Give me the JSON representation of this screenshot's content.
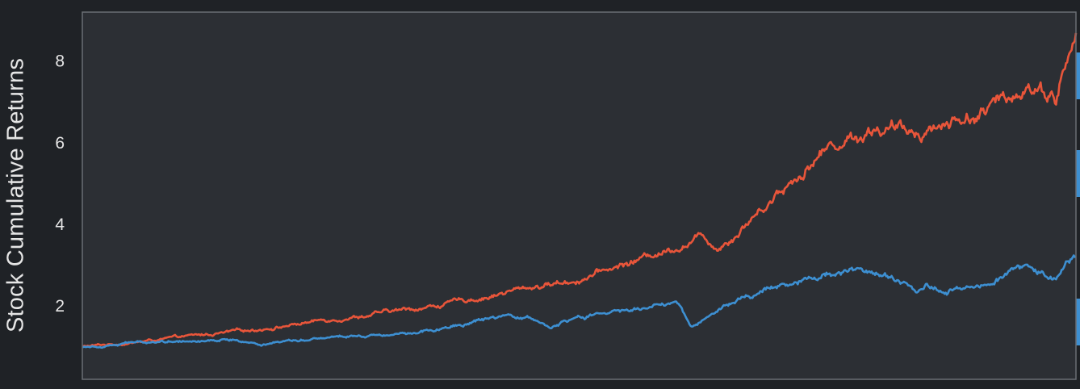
{
  "colors": {
    "background": "#1f2226",
    "plot_background": "#2c2f34",
    "frame": "#6a6e74",
    "text": "#e6e6e6",
    "series_orange": "#e8553a",
    "series_blue": "#3d8fd1"
  },
  "chart_data": {
    "type": "line",
    "title": "",
    "xlabel": "",
    "ylabel": "Stock Cumulative Returns",
    "xlim": [
      0,
      1
    ],
    "ylim": [
      0.2,
      9.2
    ],
    "yticks": [
      2,
      4,
      6,
      8
    ],
    "ytick_labels": [
      "2",
      "4",
      "6",
      "8"
    ],
    "xtick_labels": [],
    "grid": false,
    "legend": "none",
    "series": [
      {
        "color": "#e8553a",
        "x": [
          0.0,
          0.05,
          0.1,
          0.15,
          0.2,
          0.25,
          0.3,
          0.35,
          0.4,
          0.45,
          0.5,
          0.55,
          0.6,
          0.625,
          0.64,
          0.66,
          0.7,
          0.72,
          0.75,
          0.78,
          0.8,
          0.83,
          0.87,
          0.91,
          0.93,
          0.95,
          0.97,
          0.98,
          0.985,
          1.0
        ],
        "y": [
          1.0,
          1.1,
          1.23,
          1.35,
          1.5,
          1.68,
          1.82,
          1.98,
          2.2,
          2.45,
          2.65,
          3.05,
          3.48,
          3.72,
          3.45,
          3.85,
          4.8,
          5.2,
          5.9,
          6.2,
          6.4,
          6.25,
          6.5,
          6.8,
          7.0,
          7.5,
          7.3,
          7.15,
          7.6,
          8.55
        ]
      },
      {
        "color": "#3d8fd1",
        "x": [
          0.0,
          0.05,
          0.1,
          0.15,
          0.18,
          0.2,
          0.25,
          0.3,
          0.35,
          0.38,
          0.4,
          0.45,
          0.47,
          0.5,
          0.55,
          0.6,
          0.6125,
          0.62,
          0.63,
          0.66,
          0.7,
          0.73,
          0.77,
          0.8,
          0.82,
          0.84,
          0.85,
          0.87,
          0.9,
          0.93,
          0.95,
          0.97,
          0.98,
          1.0
        ],
        "y": [
          1.0,
          1.1,
          1.15,
          1.18,
          1.05,
          1.15,
          1.25,
          1.3,
          1.42,
          1.5,
          1.65,
          1.7,
          1.48,
          1.7,
          1.9,
          2.05,
          1.5,
          1.6,
          1.8,
          2.15,
          2.5,
          2.7,
          2.92,
          2.8,
          2.6,
          2.4,
          2.58,
          2.35,
          2.55,
          2.8,
          2.95,
          2.82,
          2.75,
          3.25
        ]
      }
    ]
  }
}
